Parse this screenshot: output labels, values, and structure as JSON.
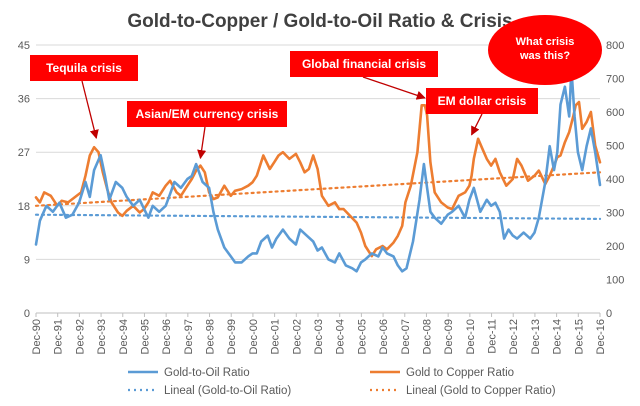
{
  "chart_data": {
    "type": "line",
    "title": "Gold-to-Copper  / Gold-to-Oil Ratio & Crisis",
    "x_tick_labels": [
      "Dec-90",
      "Dec-91",
      "Dec-92",
      "Dec-93",
      "Dec-94",
      "Dec-95",
      "Dec-96",
      "Dec-97",
      "Dec-98",
      "Dec-99",
      "Dec-00",
      "Dec-01",
      "Dec-02",
      "Dec-03",
      "Dec-04",
      "Dec-05",
      "Dec-06",
      "Dec-07",
      "Dec-08",
      "Dec-09",
      "Dec-10",
      "Dec-11",
      "Dec-12",
      "Dec-13",
      "Dec-14",
      "Dec-15",
      "Dec-16"
    ],
    "x_range": [
      1990.92,
      2016.92
    ],
    "y_left": {
      "ticks": [
        0,
        9,
        18,
        27,
        36,
        45
      ],
      "range": [
        0,
        45
      ]
    },
    "y_right": {
      "ticks": [
        0,
        100,
        200,
        300,
        400,
        500,
        600,
        700,
        800
      ],
      "range": [
        0,
        800
      ]
    },
    "grid": "horizontal",
    "legend_position": "bottom",
    "series": [
      {
        "name": "Gold-to-Oil Ratio",
        "axis": "left",
        "color": "#5b9bd5",
        "style": "solid",
        "points": [
          [
            1990.92,
            11.5
          ],
          [
            1991.1,
            15.5
          ],
          [
            1991.4,
            18
          ],
          [
            1991.7,
            17
          ],
          [
            1992.0,
            18.5
          ],
          [
            1992.3,
            16
          ],
          [
            1992.6,
            16.5
          ],
          [
            1992.9,
            18.5
          ],
          [
            1993.2,
            22
          ],
          [
            1993.4,
            19.5
          ],
          [
            1993.6,
            24
          ],
          [
            1993.9,
            26.5
          ],
          [
            1994.1,
            23
          ],
          [
            1994.3,
            19
          ],
          [
            1994.6,
            22
          ],
          [
            1994.9,
            21
          ],
          [
            1995.1,
            19.5
          ],
          [
            1995.4,
            18
          ],
          [
            1995.7,
            19
          ],
          [
            1995.9,
            17.5
          ],
          [
            1996.1,
            16
          ],
          [
            1996.3,
            18
          ],
          [
            1996.6,
            17
          ],
          [
            1996.9,
            18
          ],
          [
            1997.1,
            20
          ],
          [
            1997.3,
            22
          ],
          [
            1997.6,
            21
          ],
          [
            1997.9,
            22.5
          ],
          [
            1998.1,
            23
          ],
          [
            1998.3,
            25
          ],
          [
            1998.6,
            22
          ],
          [
            1998.9,
            21
          ],
          [
            1999.1,
            17
          ],
          [
            1999.3,
            14
          ],
          [
            1999.6,
            11
          ],
          [
            1999.9,
            9.5
          ],
          [
            2000.1,
            8.5
          ],
          [
            2000.4,
            8.5
          ],
          [
            2000.7,
            9.5
          ],
          [
            2000.9,
            10
          ],
          [
            2001.1,
            10
          ],
          [
            2001.3,
            12
          ],
          [
            2001.6,
            13
          ],
          [
            2001.8,
            11
          ],
          [
            2002.0,
            12.5
          ],
          [
            2002.3,
            14
          ],
          [
            2002.6,
            12.5
          ],
          [
            2002.9,
            11.5
          ],
          [
            2003.1,
            14
          ],
          [
            2003.4,
            13
          ],
          [
            2003.7,
            12
          ],
          [
            2003.9,
            10.5
          ],
          [
            2004.1,
            11
          ],
          [
            2004.4,
            9
          ],
          [
            2004.7,
            8.5
          ],
          [
            2004.9,
            10
          ],
          [
            2005.2,
            8
          ],
          [
            2005.5,
            7.5
          ],
          [
            2005.7,
            7
          ],
          [
            2005.9,
            8.5
          ],
          [
            2006.1,
            9
          ],
          [
            2006.4,
            10
          ],
          [
            2006.7,
            9.5
          ],
          [
            2006.9,
            11
          ],
          [
            2007.1,
            10
          ],
          [
            2007.4,
            9.5
          ],
          [
            2007.6,
            8
          ],
          [
            2007.8,
            7
          ],
          [
            2008.0,
            7.5
          ],
          [
            2008.3,
            12
          ],
          [
            2008.6,
            19
          ],
          [
            2008.8,
            25
          ],
          [
            2008.95,
            21
          ],
          [
            2009.1,
            17
          ],
          [
            2009.3,
            16
          ],
          [
            2009.6,
            15
          ],
          [
            2009.9,
            16.5
          ],
          [
            2010.1,
            17
          ],
          [
            2010.4,
            18
          ],
          [
            2010.7,
            16
          ],
          [
            2010.9,
            19
          ],
          [
            2011.1,
            21
          ],
          [
            2011.4,
            17
          ],
          [
            2011.7,
            19
          ],
          [
            2011.9,
            18
          ],
          [
            2012.1,
            18.5
          ],
          [
            2012.3,
            17
          ],
          [
            2012.5,
            12.5
          ],
          [
            2012.7,
            14
          ],
          [
            2012.9,
            13
          ],
          [
            2013.1,
            12.5
          ],
          [
            2013.4,
            13.5
          ],
          [
            2013.7,
            12.5
          ],
          [
            2013.9,
            13.5
          ],
          [
            2014.1,
            16
          ],
          [
            2014.4,
            22
          ],
          [
            2014.6,
            28
          ],
          [
            2014.8,
            24
          ],
          [
            2014.95,
            27
          ],
          [
            2015.1,
            35
          ],
          [
            2015.3,
            38
          ],
          [
            2015.5,
            33
          ],
          [
            2015.6,
            41
          ],
          [
            2015.75,
            33
          ],
          [
            2015.9,
            27
          ],
          [
            2016.1,
            24
          ],
          [
            2016.3,
            28
          ],
          [
            2016.5,
            31
          ],
          [
            2016.7,
            27
          ],
          [
            2016.92,
            21.5
          ]
        ]
      },
      {
        "name": "Gold to Copper Ratio",
        "axis": "right",
        "color": "#ed7d31",
        "style": "solid",
        "points": [
          [
            1990.92,
            345
          ],
          [
            1991.1,
            330
          ],
          [
            1991.3,
            360
          ],
          [
            1991.6,
            350
          ],
          [
            1991.9,
            320
          ],
          [
            1992.1,
            335
          ],
          [
            1992.4,
            330
          ],
          [
            1992.7,
            345
          ],
          [
            1993.0,
            360
          ],
          [
            1993.2,
            410
          ],
          [
            1993.4,
            470
          ],
          [
            1993.6,
            495
          ],
          [
            1993.8,
            480
          ],
          [
            1994.0,
            420
          ],
          [
            1994.2,
            370
          ],
          [
            1994.4,
            330
          ],
          [
            1994.7,
            300
          ],
          [
            1994.9,
            290
          ],
          [
            1995.1,
            305
          ],
          [
            1995.4,
            320
          ],
          [
            1995.7,
            300
          ],
          [
            1995.9,
            310
          ],
          [
            1996.1,
            330
          ],
          [
            1996.3,
            360
          ],
          [
            1996.6,
            350
          ],
          [
            1996.9,
            380
          ],
          [
            1997.1,
            395
          ],
          [
            1997.4,
            360
          ],
          [
            1997.6,
            350
          ],
          [
            1997.9,
            380
          ],
          [
            1998.1,
            400
          ],
          [
            1998.3,
            425
          ],
          [
            1998.5,
            440
          ],
          [
            1998.7,
            420
          ],
          [
            1998.9,
            360
          ],
          [
            1999.1,
            340
          ],
          [
            1999.3,
            345
          ],
          [
            1999.6,
            380
          ],
          [
            1999.9,
            350
          ],
          [
            2000.1,
            365
          ],
          [
            2000.4,
            370
          ],
          [
            2000.7,
            380
          ],
          [
            2000.9,
            390
          ],
          [
            2001.1,
            410
          ],
          [
            2001.4,
            470
          ],
          [
            2001.7,
            430
          ],
          [
            2001.9,
            450
          ],
          [
            2002.1,
            470
          ],
          [
            2002.3,
            480
          ],
          [
            2002.6,
            460
          ],
          [
            2002.9,
            475
          ],
          [
            2003.1,
            450
          ],
          [
            2003.3,
            420
          ],
          [
            2003.5,
            430
          ],
          [
            2003.7,
            470
          ],
          [
            2003.9,
            430
          ],
          [
            2004.1,
            350
          ],
          [
            2004.4,
            320
          ],
          [
            2004.7,
            330
          ],
          [
            2004.9,
            310
          ],
          [
            2005.1,
            310
          ],
          [
            2005.4,
            290
          ],
          [
            2005.7,
            270
          ],
          [
            2005.9,
            240
          ],
          [
            2006.1,
            200
          ],
          [
            2006.4,
            170
          ],
          [
            2006.6,
            190
          ],
          [
            2006.9,
            200
          ],
          [
            2007.1,
            190
          ],
          [
            2007.4,
            210
          ],
          [
            2007.6,
            230
          ],
          [
            2007.8,
            260
          ],
          [
            2007.95,
            330
          ],
          [
            2008.2,
            380
          ],
          [
            2008.5,
            480
          ],
          [
            2008.7,
            620
          ],
          [
            2008.85,
            620
          ],
          [
            2008.95,
            590
          ],
          [
            2009.1,
            450
          ],
          [
            2009.3,
            360
          ],
          [
            2009.6,
            330
          ],
          [
            2009.9,
            315
          ],
          [
            2010.1,
            310
          ],
          [
            2010.4,
            350
          ],
          [
            2010.7,
            360
          ],
          [
            2010.9,
            380
          ],
          [
            2011.0,
            410
          ],
          [
            2011.1,
            460
          ],
          [
            2011.3,
            520
          ],
          [
            2011.5,
            490
          ],
          [
            2011.7,
            460
          ],
          [
            2011.9,
            440
          ],
          [
            2012.1,
            460
          ],
          [
            2012.3,
            420
          ],
          [
            2012.6,
            380
          ],
          [
            2012.9,
            400
          ],
          [
            2013.1,
            460
          ],
          [
            2013.3,
            440
          ],
          [
            2013.6,
            395
          ],
          [
            2013.9,
            410
          ],
          [
            2014.1,
            425
          ],
          [
            2014.4,
            385
          ],
          [
            2014.6,
            410
          ],
          [
            2014.8,
            440
          ],
          [
            2014.95,
            465
          ],
          [
            2015.1,
            470
          ],
          [
            2015.3,
            510
          ],
          [
            2015.5,
            540
          ],
          [
            2015.7,
            590
          ],
          [
            2015.8,
            620
          ],
          [
            2015.95,
            630
          ],
          [
            2016.1,
            550
          ],
          [
            2016.3,
            570
          ],
          [
            2016.5,
            600
          ],
          [
            2016.7,
            500
          ],
          [
            2016.92,
            450
          ]
        ]
      },
      {
        "name": "Lineal (Gold-to-Oil Ratio)",
        "axis": "left",
        "color": "#5b9bd5",
        "style": "dotted",
        "points": [
          [
            1990.92,
            16.5
          ],
          [
            2016.92,
            15.8
          ]
        ]
      },
      {
        "name": "Lineal (Gold to Copper Ratio)",
        "axis": "right",
        "color": "#ed7d31",
        "style": "dotted",
        "points": [
          [
            1990.92,
            320
          ],
          [
            2016.92,
            420
          ]
        ]
      }
    ],
    "annotations": [
      {
        "text": "Tequila crisis",
        "target": [
          1993.7,
          510
        ],
        "axis": "right"
      },
      {
        "text": "Asian/EM currency crisis",
        "target": [
          1998.5,
          450
        ],
        "axis": "right"
      },
      {
        "text": "Global financial crisis",
        "target": [
          2008.85,
          630
        ],
        "axis": "right"
      },
      {
        "text": "EM dollar crisis",
        "target": [
          2011.0,
          520
        ],
        "axis": "right"
      },
      {
        "text": "What crisis was this?",
        "shape": "ellipse"
      }
    ]
  }
}
